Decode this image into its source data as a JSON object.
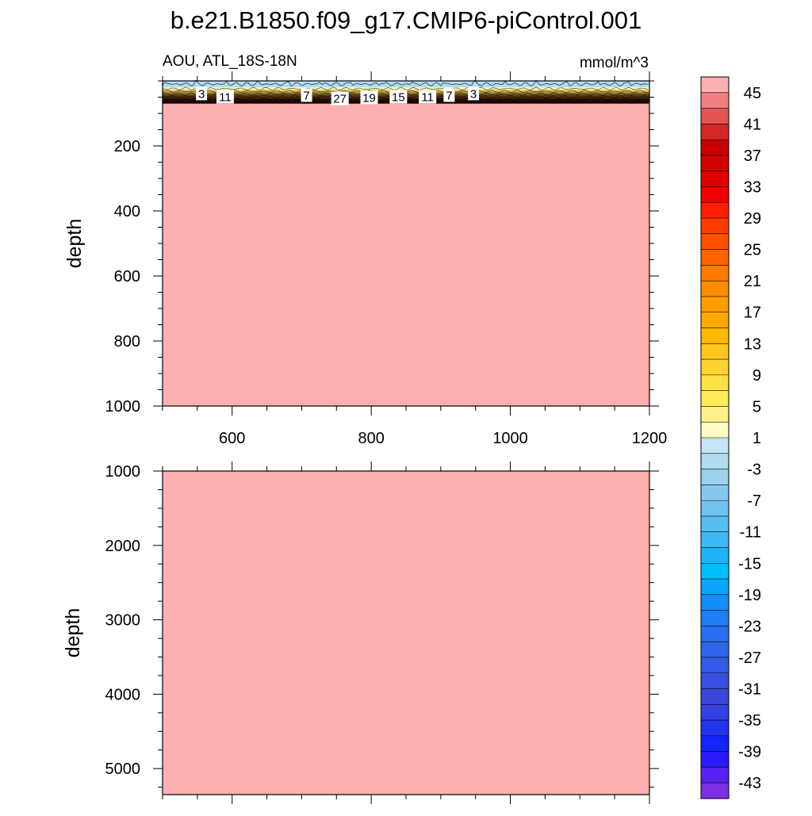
{
  "figure": {
    "title": "b.e21.B1850.f09_g17.CMIP6-piControl.001"
  },
  "colors": {
    "fill_high": "#fdb0b0",
    "surface_blue": "#a8d4ec",
    "frame": "#000000",
    "label_bg": "#ffffff"
  },
  "chart_data": [
    {
      "type": "heatmap",
      "panel": "upper",
      "left_label": "AOU, ATL_18S-18N",
      "right_label": "mmol/m^3",
      "ylabel": "depth",
      "xlabel": "",
      "xlim": [
        500,
        1200
      ],
      "ylim": [
        0,
        1000
      ],
      "y_reversed": true,
      "x_ticks": [
        600,
        800,
        1000,
        1200
      ],
      "x_tick_labels": [
        "600",
        "800",
        "1000",
        "1200"
      ],
      "y_ticks": [
        200,
        400,
        600,
        800,
        1000
      ],
      "y_tick_labels": [
        "200",
        "400",
        "600",
        "800",
        "1000"
      ],
      "layers": [
        {
          "depth_top": 0,
          "depth_bottom": 20,
          "value": -3
        },
        {
          "depth_top": 20,
          "depth_bottom": 70,
          "value": "contour band 1 to 45"
        },
        {
          "depth_top": 70,
          "depth_bottom": 1000,
          "value": 47
        }
      ],
      "contour_labels": [
        {
          "text": "3",
          "x": 556,
          "depth": 40
        },
        {
          "text": "11",
          "x": 590,
          "depth": 50
        },
        {
          "text": "7",
          "x": 707,
          "depth": 45
        },
        {
          "text": "27",
          "x": 755,
          "depth": 55
        },
        {
          "text": "19",
          "x": 797,
          "depth": 52
        },
        {
          "text": "15",
          "x": 839,
          "depth": 50
        },
        {
          "text": "11",
          "x": 881,
          "depth": 50
        },
        {
          "text": "7",
          "x": 912,
          "depth": 45
        },
        {
          "text": "3",
          "x": 947,
          "depth": 40
        }
      ]
    },
    {
      "type": "heatmap",
      "panel": "lower",
      "ylabel": "depth",
      "xlabel": "",
      "xlim": [
        500,
        1200
      ],
      "ylim": [
        1000,
        5350
      ],
      "y_reversed": true,
      "y_ticks": [
        1000,
        2000,
        3000,
        4000,
        5000
      ],
      "y_tick_labels": [
        "1000",
        "2000",
        "3000",
        "4000",
        "5000"
      ],
      "layers": [
        {
          "depth_top": 1000,
          "depth_bottom": 5350,
          "value": 47
        }
      ]
    }
  ],
  "colorbar": {
    "levels": [
      45,
      43,
      41,
      39,
      37,
      35,
      33,
      31,
      29,
      27,
      25,
      23,
      21,
      19,
      17,
      15,
      13,
      11,
      9,
      7,
      5,
      3,
      1,
      -1,
      -3,
      -5,
      -7,
      -9,
      -11,
      -13,
      -15,
      -17,
      -19,
      -21,
      -23,
      -25,
      -27,
      -29,
      -31,
      -33,
      -35,
      -37,
      -39,
      -41,
      -43,
      -45
    ],
    "labeled": [
      "45",
      "41",
      "37",
      "33",
      "29",
      "25",
      "21",
      "17",
      "13",
      "9",
      "5",
      "1",
      "-3",
      "-7",
      "-11",
      "-15",
      "-19",
      "-23",
      "-27",
      "-31",
      "-35",
      "-39",
      "-43"
    ],
    "colors": [
      "#fdb0b0",
      "#f08080",
      "#e25353",
      "#d42828",
      "#c80000",
      "#d40000",
      "#e10000",
      "#f00000",
      "#ff1e00",
      "#ff3c00",
      "#ff5000",
      "#ff6400",
      "#ff7800",
      "#ff8c00",
      "#ff9b00",
      "#ffa800",
      "#ffb700",
      "#ffc61e",
      "#ffd332",
      "#ffe046",
      "#ffea5a",
      "#fff28c",
      "#fffcc8",
      "#c5e6f6",
      "#b0dcf0",
      "#9bd0ee",
      "#86c6ec",
      "#6ec2f0",
      "#55bff2",
      "#3ab9f5",
      "#1eb4f8",
      "#00bfff",
      "#0aa6fb",
      "#148ef7",
      "#1e7ef3",
      "#2870ef",
      "#2e66ea",
      "#335ae4",
      "#3850de",
      "#3a47dc",
      "#3340e6",
      "#2433f0",
      "#1424fa",
      "#2a1aff",
      "#5522f0",
      "#7e2ee6"
    ]
  }
}
